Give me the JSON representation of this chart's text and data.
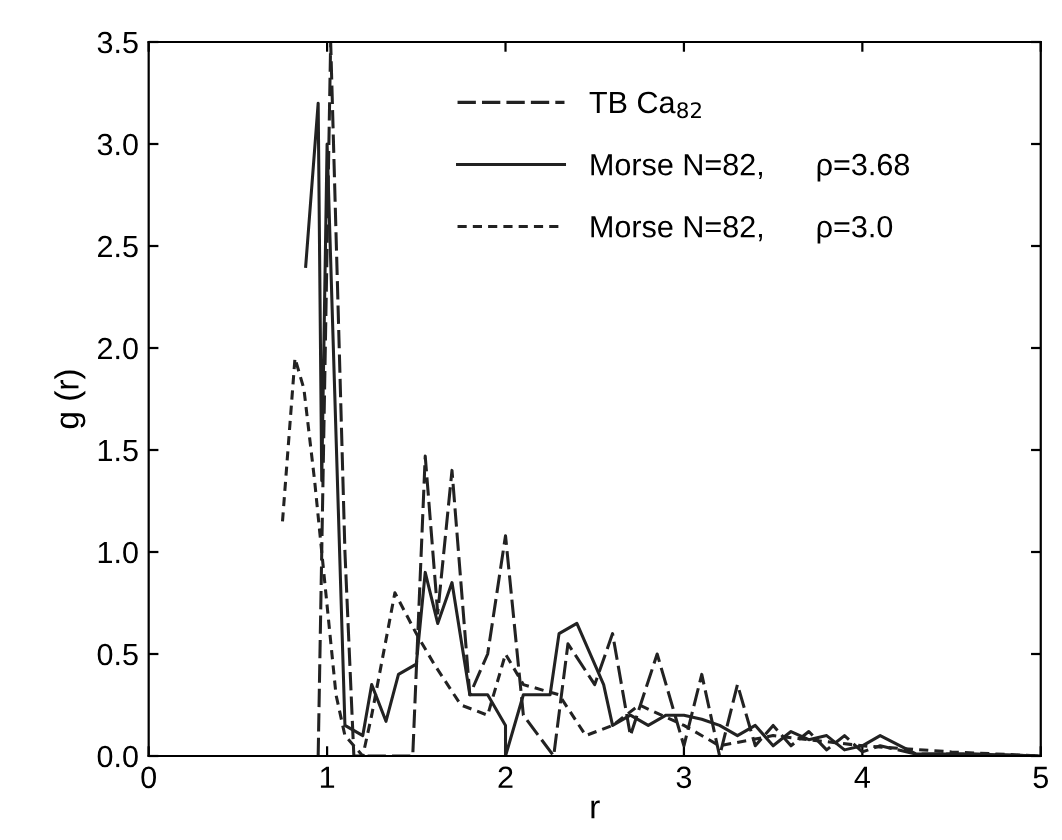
{
  "chart_data": {
    "type": "line",
    "xlabel": "r",
    "ylabel": "g (r)",
    "xlim": [
      0,
      5
    ],
    "ylim": [
      0,
      3.5
    ],
    "xticks": [
      0,
      1,
      2,
      3,
      4,
      5
    ],
    "yticks": [
      {
        "value": 0,
        "label": "0.0"
      },
      {
        "value": 0.5,
        "label": "0.5"
      },
      {
        "value": 1,
        "label": "1.0"
      },
      {
        "value": 1.5,
        "label": "1.5"
      },
      {
        "value": 2,
        "label": "2.0"
      },
      {
        "value": 2.5,
        "label": "2.5"
      },
      {
        "value": 3,
        "label": "3.0"
      },
      {
        "value": 3.5,
        "label": "3.5"
      }
    ],
    "grid": false,
    "legend": "top",
    "marker": "none",
    "series": [
      {
        "name": "TB Ca$_{82}$",
        "color": "#222222",
        "line_style": "dashed",
        "x": [
          0.95,
          1.02,
          1.1,
          1.15,
          1.3,
          1.48,
          1.55,
          1.62,
          1.7,
          1.8,
          1.9,
          2.0,
          2.1,
          2.27,
          2.35,
          2.5,
          2.6,
          2.7,
          2.85,
          3.0,
          3.1,
          3.2,
          3.3,
          3.4,
          3.5,
          3.6,
          3.7,
          3.8,
          3.9,
          4.0,
          4.1,
          4.3,
          4.6,
          5.0
        ],
        "values": [
          0.0,
          3.5,
          1.0,
          0.0,
          0.0,
          0.0,
          1.47,
          0.7,
          1.4,
          0.3,
          0.5,
          1.08,
          0.2,
          0.0,
          0.55,
          0.35,
          0.6,
          0.1,
          0.5,
          0.05,
          0.4,
          0.0,
          0.35,
          0.05,
          0.15,
          0.05,
          0.12,
          0.03,
          0.1,
          0.02,
          0.05,
          0.01,
          0.01,
          0.0
        ]
      },
      {
        "name": "Morse N=82,      ρ=3.68",
        "color": "#222222",
        "line_style": "solid",
        "x": [
          0.88,
          0.95,
          0.97,
          1.0,
          1.1,
          1.2,
          1.25,
          1.33,
          1.4,
          1.5,
          1.55,
          1.62,
          1.7,
          1.8,
          1.9,
          2.0,
          2.0,
          2.1,
          2.25,
          2.3,
          2.4,
          2.55,
          2.6,
          2.7,
          2.8,
          2.9,
          3.0,
          3.1,
          3.2,
          3.3,
          3.4,
          3.5,
          3.6,
          3.7,
          3.8,
          3.9,
          4.0,
          4.1,
          4.3,
          4.6,
          5.0
        ],
        "values": [
          2.4,
          3.2,
          1.35,
          3.0,
          0.15,
          0.1,
          0.35,
          0.17,
          0.4,
          0.45,
          0.9,
          0.65,
          0.85,
          0.3,
          0.3,
          0.15,
          0.0,
          0.3,
          0.3,
          0.6,
          0.65,
          0.35,
          0.15,
          0.2,
          0.15,
          0.2,
          0.2,
          0.18,
          0.15,
          0.1,
          0.15,
          0.05,
          0.12,
          0.08,
          0.1,
          0.03,
          0.05,
          0.1,
          0.01,
          0.01,
          0.0
        ]
      },
      {
        "name": "Morse N=82,      ρ=3.0",
        "color": "#222222",
        "line_style": "dotted",
        "x": [
          0.75,
          0.82,
          0.87,
          0.93,
          0.97,
          1.05,
          1.1,
          1.2,
          1.25,
          1.38,
          1.5,
          1.6,
          1.75,
          1.9,
          2.0,
          2.1,
          2.3,
          2.45,
          2.6,
          2.75,
          3.0,
          3.2,
          3.5,
          4.0,
          4.5,
          5.0
        ],
        "values": [
          1.15,
          1.95,
          1.8,
          1.35,
          1.0,
          0.3,
          0.1,
          0.0,
          0.2,
          0.8,
          0.6,
          0.45,
          0.25,
          0.2,
          0.5,
          0.35,
          0.3,
          0.1,
          0.15,
          0.25,
          0.15,
          0.05,
          0.1,
          0.05,
          0.02,
          0.0
        ]
      }
    ]
  }
}
